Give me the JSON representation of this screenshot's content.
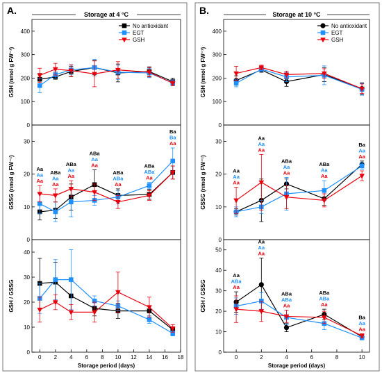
{
  "panels": [
    {
      "letter": "A.",
      "header": "Storage at 4 °C",
      "xlabel": "Storage period (days)",
      "xlim": [
        -1,
        18
      ],
      "xticks": [
        0,
        2,
        4,
        6,
        8,
        10,
        12,
        14,
        16,
        18
      ],
      "x": [
        0,
        2,
        4,
        7,
        10,
        14,
        17
      ],
      "legend": [
        "No antioxidant",
        "EGT",
        "GSH"
      ],
      "sub": [
        {
          "ylabel": "GSH (nmol g FW⁻¹)",
          "ylim": [
            0,
            450
          ],
          "yticks": [
            0,
            100,
            200,
            300,
            400
          ],
          "series": [
            {
              "values": [
                195,
                205,
                228,
                245,
                222,
                228,
                185
              ],
              "err": [
                25,
                10,
                22,
                30,
                38,
                20,
                15
              ]
            },
            {
              "values": [
                168,
                215,
                235,
                245,
                225,
                222,
                180
              ],
              "err": [
                30,
                15,
                20,
                35,
                30,
                20,
                12
              ]
            },
            {
              "values": [
                212,
                238,
                232,
                218,
                235,
                225,
                178
              ],
              "err": [
                30,
                25,
                25,
                55,
                35,
                20,
                10
              ]
            }
          ]
        },
        {
          "ylabel": "GSSG (nmol g FW⁻¹)",
          "ylim": [
            0,
            35
          ],
          "yticks": [
            0,
            10,
            20,
            30
          ],
          "series": [
            {
              "values": [
                8.5,
                9.0,
                13.0,
                16.8,
                13.5,
                13.8,
                20.5
              ],
              "err": [
                2.5,
                2.5,
                4.0,
                4.5,
                2.0,
                1.5,
                2.0
              ]
            },
            {
              "values": [
                11.0,
                8.5,
                11.5,
                12.0,
                13.0,
                16.5,
                24.0
              ],
              "err": [
                3.0,
                3.0,
                4.5,
                1.5,
                2.0,
                1.0,
                4.0
              ]
            },
            {
              "values": [
                14.0,
                13.5,
                15.5,
                14.5,
                11.5,
                13.5,
                20.5
              ],
              "err": [
                2.5,
                2.0,
                2.5,
                2.5,
                2.0,
                1.5,
                2.0
              ]
            }
          ],
          "annotations": [
            {
              "x": 0,
              "labels": [
                "Aa",
                "Aa",
                "Aa"
              ]
            },
            {
              "x": 2,
              "labels": [
                "ABa",
                "Aa",
                "Aa"
              ]
            },
            {
              "x": 4,
              "labels": [
                "ABa",
                "Aa",
                "Aa"
              ]
            },
            {
              "x": 7,
              "labels": [
                "ABa",
                "Aa",
                "Aa"
              ]
            },
            {
              "x": 10,
              "labels": [
                "ABa",
                "ABa",
                "Aa"
              ]
            },
            {
              "x": 14,
              "labels": [
                "ABa",
                "ABa",
                "Aa"
              ]
            },
            {
              "x": 17,
              "labels": [
                "Ba",
                "Ba",
                "Aa"
              ]
            }
          ]
        },
        {
          "ylabel": "GSH / GSSG",
          "ylim": [
            0,
            45
          ],
          "yticks": [
            0,
            10,
            20,
            30,
            40
          ],
          "series": [
            {
              "values": [
                27.5,
                28.0,
                22.5,
                17.5,
                16.5,
                16.5,
                9.0
              ],
              "err": [
                10.0,
                8.0,
                6.0,
                3.0,
                3.0,
                2.0,
                1.0
              ]
            },
            {
              "values": [
                21.5,
                29.0,
                29.0,
                20.5,
                18.5,
                13.0,
                7.5
              ],
              "err": [
                6.0,
                8.0,
                12.0,
                2.0,
                2.0,
                1.5,
                1.0
              ]
            },
            {
              "values": [
                17.0,
                20.0,
                16.0,
                16.0,
                24.0,
                18.0,
                9.5
              ],
              "err": [
                5.0,
                3.0,
                3.0,
                4.0,
                8.0,
                4.0,
                1.5
              ]
            }
          ]
        }
      ]
    },
    {
      "letter": "B.",
      "header": "Storage at 10 °C",
      "xlabel": "Storage period (days)",
      "xlim": [
        -1,
        10.6
      ],
      "xticks": [
        0,
        2,
        4,
        6,
        8,
        10
      ],
      "x": [
        0,
        2,
        4,
        7,
        10
      ],
      "legend": [
        "No antioxidant",
        "EGT",
        "GSH"
      ],
      "sub": [
        {
          "ylabel": "GSH (nmol g FW⁻¹)",
          "ylim": [
            0,
            450
          ],
          "yticks": [
            0,
            100,
            200,
            300,
            400
          ],
          "series": [
            {
              "values": [
                190,
                235,
                185,
                215,
                155
              ],
              "err": [
                20,
                10,
                20,
                30,
                25
              ]
            },
            {
              "values": [
                178,
                238,
                205,
                212,
                152
              ],
              "err": [
                15,
                8,
                20,
                40,
                25
              ]
            },
            {
              "values": [
                220,
                245,
                215,
                220,
                155
              ],
              "err": [
                30,
                10,
                15,
                20,
                20
              ]
            }
          ]
        },
        {
          "ylabel": "GSSG (nmol g FW⁻¹)",
          "ylim": [
            0,
            35
          ],
          "yticks": [
            0,
            10,
            20,
            30
          ],
          "series": [
            {
              "values": [
                8.5,
                12.0,
                17.0,
                12.5,
                23.0
              ],
              "err": [
                1.0,
                6.5,
                1.5,
                2.0,
                1.0
              ]
            },
            {
              "values": [
                8.5,
                10.0,
                14.0,
                15.0,
                22.5
              ],
              "err": [
                1.5,
                2.0,
                5.0,
                3.0,
                1.0
              ]
            },
            {
              "values": [
                12.0,
                17.5,
                13.0,
                12.0,
                19.5
              ],
              "err": [
                4.0,
                8.5,
                3.5,
                2.0,
                1.5
              ]
            }
          ],
          "annotations": [
            {
              "x": 0,
              "labels": [
                "Aa",
                "Aa",
                "Aa"
              ]
            },
            {
              "x": 2,
              "labels": [
                "Aa",
                "Aa",
                "Aa"
              ]
            },
            {
              "x": 4,
              "labels": [
                "ABa",
                "Aa",
                "Aa"
              ]
            },
            {
              "x": 7,
              "labels": [
                "ABa",
                "Aa",
                "Aa"
              ]
            },
            {
              "x": 10,
              "labels": [
                "Ba",
                "Aa",
                "Aa"
              ]
            }
          ]
        },
        {
          "ylabel": "GSH / GSSG",
          "ylim": [
            0,
            55
          ],
          "yticks": [
            0,
            10,
            20,
            30,
            40,
            50
          ],
          "series": [
            {
              "values": [
                24.5,
                33.0,
                12.0,
                18.5,
                7.5
              ],
              "err": [
                5.0,
                13.0,
                2.0,
                2.5,
                1.0
              ]
            },
            {
              "values": [
                22.5,
                25.0,
                17.0,
                14.0,
                7.0
              ],
              "err": [
                4.0,
                4.0,
                3.5,
                3.0,
                1.0
              ]
            },
            {
              "values": [
                21.0,
                20.0,
                17.5,
                17.0,
                8.0
              ],
              "err": [
                6.5,
                5.0,
                3.0,
                3.0,
                1.0
              ]
            }
          ],
          "annotations": [
            {
              "x": 0,
              "labels": [
                "Aa",
                "ABa",
                "Aa"
              ]
            },
            {
              "x": 2,
              "labels": [
                "Aa",
                "Aa",
                "Aa"
              ]
            },
            {
              "x": 4,
              "labels": [
                "ABa",
                "ABa",
                "Aa"
              ]
            },
            {
              "x": 7,
              "labels": [
                "ABa",
                "ABa",
                "Aa"
              ]
            },
            {
              "x": 10,
              "labels": [
                "Ba",
                "Aa",
                "Aa"
              ]
            }
          ]
        }
      ]
    }
  ],
  "colors": [
    "#000000",
    "#1e90ff",
    "#e8000d"
  ],
  "markers": [
    "square",
    "square",
    "triangle-down"
  ],
  "markers_b": [
    "circle",
    "square",
    "triangle-down"
  ],
  "chart_data": [
    {
      "type": "line",
      "title": "Storage at 4 °C",
      "xlabel": "Storage period (days)",
      "ylabel": "GSH (nmol g FW⁻¹)",
      "x": [
        0,
        2,
        4,
        7,
        10,
        14,
        17
      ],
      "ylim": [
        0,
        450
      ],
      "series": [
        {
          "name": "No antioxidant",
          "values": [
            195,
            205,
            228,
            245,
            222,
            228,
            185
          ]
        },
        {
          "name": "EGT",
          "values": [
            168,
            215,
            235,
            245,
            225,
            222,
            180
          ]
        },
        {
          "name": "GSH",
          "values": [
            212,
            238,
            232,
            218,
            235,
            225,
            178
          ]
        }
      ]
    },
    {
      "type": "line",
      "title": "Storage at 4 °C",
      "xlabel": "Storage period (days)",
      "ylabel": "GSSG (nmol g FW⁻¹)",
      "x": [
        0,
        2,
        4,
        7,
        10,
        14,
        17
      ],
      "ylim": [
        0,
        35
      ],
      "series": [
        {
          "name": "No antioxidant",
          "values": [
            8.5,
            9.0,
            13.0,
            16.8,
            13.5,
            13.8,
            20.5
          ]
        },
        {
          "name": "EGT",
          "values": [
            11.0,
            8.5,
            11.5,
            12.0,
            13.0,
            16.5,
            24.0
          ]
        },
        {
          "name": "GSH",
          "values": [
            14.0,
            13.5,
            15.5,
            14.5,
            11.5,
            13.5,
            20.5
          ]
        }
      ]
    },
    {
      "type": "line",
      "title": "Storage at 4 °C",
      "xlabel": "Storage period (days)",
      "ylabel": "GSH / GSSG",
      "x": [
        0,
        2,
        4,
        7,
        10,
        14,
        17
      ],
      "ylim": [
        0,
        45
      ],
      "series": [
        {
          "name": "No antioxidant",
          "values": [
            27.5,
            28.0,
            22.5,
            17.5,
            16.5,
            16.5,
            9.0
          ]
        },
        {
          "name": "EGT",
          "values": [
            21.5,
            29.0,
            29.0,
            20.5,
            18.5,
            13.0,
            7.5
          ]
        },
        {
          "name": "GSH",
          "values": [
            17.0,
            20.0,
            16.0,
            16.0,
            24.0,
            18.0,
            9.5
          ]
        }
      ]
    },
    {
      "type": "line",
      "title": "Storage at 10 °C",
      "xlabel": "Storage period (days)",
      "ylabel": "GSH (nmol g FW⁻¹)",
      "x": [
        0,
        2,
        4,
        7,
        10
      ],
      "ylim": [
        0,
        450
      ],
      "series": [
        {
          "name": "No antioxidant",
          "values": [
            190,
            235,
            185,
            215,
            155
          ]
        },
        {
          "name": "EGT",
          "values": [
            178,
            238,
            205,
            212,
            152
          ]
        },
        {
          "name": "GSH",
          "values": [
            220,
            245,
            215,
            220,
            155
          ]
        }
      ]
    },
    {
      "type": "line",
      "title": "Storage at 10 °C",
      "xlabel": "Storage period (days)",
      "ylabel": "GSSG (nmol g FW⁻¹)",
      "x": [
        0,
        2,
        4,
        7,
        10
      ],
      "ylim": [
        0,
        35
      ],
      "series": [
        {
          "name": "No antioxidant",
          "values": [
            8.5,
            12.0,
            17.0,
            12.5,
            23.0
          ]
        },
        {
          "name": "EGT",
          "values": [
            8.5,
            10.0,
            14.0,
            15.0,
            22.5
          ]
        },
        {
          "name": "GSH",
          "values": [
            12.0,
            17.5,
            13.0,
            12.0,
            19.5
          ]
        }
      ]
    },
    {
      "type": "line",
      "title": "Storage at 10 °C",
      "xlabel": "Storage period (days)",
      "ylabel": "GSH / GSSG",
      "x": [
        0,
        2,
        4,
        7,
        10
      ],
      "ylim": [
        0,
        55
      ],
      "series": [
        {
          "name": "No antioxidant",
          "values": [
            24.5,
            33.0,
            12.0,
            18.5,
            7.5
          ]
        },
        {
          "name": "EGT",
          "values": [
            22.5,
            25.0,
            17.0,
            14.0,
            7.0
          ]
        },
        {
          "name": "GSH",
          "values": [
            21.0,
            20.0,
            17.5,
            17.0,
            8.0
          ]
        }
      ]
    }
  ]
}
